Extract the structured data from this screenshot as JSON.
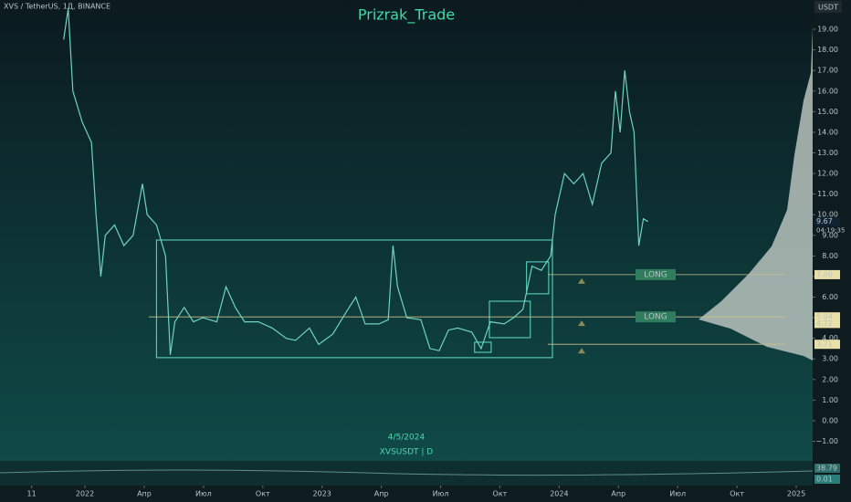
{
  "chart_data": {
    "type": "line",
    "symbol": "XVS / TetherUS, 1Д, BINANCE",
    "title": "Prizrak_Trade",
    "date_label": "4/5/2024",
    "ticker": "XVSUSDT | D",
    "currency": "USDT",
    "color": "#6fd3c0",
    "x": [
      -1.08,
      -0.85,
      -0.61,
      -0.14,
      0.33,
      0.56,
      0.8,
      1.03,
      1.5,
      1.97,
      2.44,
      2.91,
      3.15,
      3.62,
      4.08,
      4.32,
      4.55,
      5.02,
      5.49,
      5.96,
      6.67,
      7.14,
      7.61,
      8.08,
      8.78,
      9.48,
      10.19,
      10.66,
      11.36,
      11.83,
      12.54,
      13.24,
      13.71,
      14.18,
      14.88,
      15.35,
      15.59,
      15.82,
      16.29,
      17.0,
      17.46,
      17.93,
      18.4,
      18.87,
      19.58,
      20.05,
      20.52,
      21.22,
      21.69,
      22.16,
      22.63,
      23.1,
      23.57,
      23.8,
      24.27,
      24.74,
      25.21,
      25.68,
      26.15,
      26.62,
      26.85,
      27.09,
      27.32,
      27.56,
      27.79,
      28.03,
      28.26,
      28.5
    ],
    "values": [
      18.5,
      20,
      16,
      14.5,
      13.5,
      10,
      7,
      9,
      9.5,
      8.5,
      9,
      11.5,
      10,
      9.5,
      8,
      3.2,
      4.8,
      5.5,
      4.8,
      5.0,
      4.8,
      6.5,
      5.5,
      4.8,
      4.8,
      4.5,
      4.0,
      3.9,
      4.5,
      3.7,
      4.2,
      5.3,
      6.0,
      4.7,
      4.7,
      4.9,
      8.5,
      6.5,
      5.0,
      4.9,
      3.5,
      3.4,
      4.4,
      4.5,
      4.3,
      3.5,
      4.8,
      4.7,
      5.0,
      5.4,
      7.5,
      7.3,
      8.0,
      10,
      12,
      11.5,
      12,
      10.5,
      12.5,
      13,
      16,
      14,
      17,
      15,
      14,
      8.5,
      9.8,
      9.67
    ],
    "xlim": [
      -4.3,
      36.83
    ],
    "ylim": [
      -1.73,
      20.42
    ],
    "xticks": [
      {
        "value": -2.7,
        "label": "11"
      },
      {
        "value": 0,
        "label": "2022"
      },
      {
        "value": 3,
        "label": "Апр"
      },
      {
        "value": 6,
        "label": "Июл"
      },
      {
        "value": 9,
        "label": "Окт"
      },
      {
        "value": 12,
        "label": "2023"
      },
      {
        "value": 15,
        "label": "Апр"
      },
      {
        "value": 18,
        "label": "Июл"
      },
      {
        "value": 21,
        "label": "Окт"
      },
      {
        "value": 24,
        "label": "2024"
      },
      {
        "value": 27,
        "label": "Апр"
      },
      {
        "value": 30,
        "label": "Июл"
      },
      {
        "value": 33,
        "label": "Окт"
      },
      {
        "value": 36,
        "label": "2025"
      }
    ],
    "yticks": [
      {
        "value": -1,
        "label": "−1.00"
      },
      {
        "value": 0,
        "label": "0.00"
      },
      {
        "value": 1,
        "label": "1.00"
      },
      {
        "value": 2,
        "label": "2.00"
      },
      {
        "value": 3,
        "label": "3.00"
      },
      {
        "value": 4,
        "label": "4.00"
      },
      {
        "value": 5,
        "label": "5.00"
      },
      {
        "value": 6,
        "label": "6.00"
      },
      {
        "value": 7,
        "label": "7.00"
      },
      {
        "value": 8,
        "label": "8.00"
      },
      {
        "value": 9,
        "label": "9.00"
      },
      {
        "value": 10,
        "label": "10.00"
      },
      {
        "value": 11,
        "label": "11.00"
      },
      {
        "value": 12,
        "label": "12.00"
      },
      {
        "value": 13,
        "label": "13.00"
      },
      {
        "value": 14,
        "label": "14.00"
      },
      {
        "value": 15,
        "label": "15.00"
      },
      {
        "value": 16,
        "label": "16.00"
      },
      {
        "value": 17,
        "label": "17.00"
      },
      {
        "value": 18,
        "label": "18.00"
      },
      {
        "value": 19,
        "label": "19.00"
      }
    ],
    "boxes": [
      {
        "x": [
          3.62,
          23.66
        ],
        "y": [
          3.06,
          8.77
        ]
      },
      {
        "x": [
          22.35,
          23.47
        ],
        "y": [
          6.16,
          7.71
        ]
      },
      {
        "x": [
          20.47,
          22.54
        ],
        "y": [
          4.03,
          5.8
        ]
      },
      {
        "x": [
          19.72,
          20.56
        ],
        "y": [
          3.32,
          3.81
        ]
      }
    ],
    "levels": [
      {
        "value": 7.09,
        "label": "LONG"
      },
      {
        "value": 5.04,
        "label": "LONG"
      },
      {
        "value": 3.71
      }
    ],
    "last_price": 9.67,
    "countdown": "04:19:35",
    "extra_price": 4.72,
    "indicator_values": [
      38.79,
      0.01
    ]
  }
}
